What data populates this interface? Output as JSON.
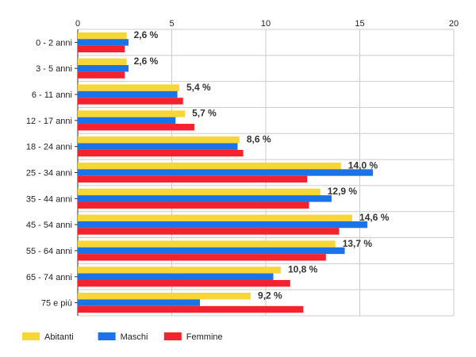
{
  "chart_data": {
    "type": "bar",
    "orientation": "horizontal",
    "title": "",
    "xlabel": "",
    "ylabel": "",
    "xlim": [
      0,
      20
    ],
    "x_ticks": [
      "0",
      "5",
      "10",
      "15",
      "20"
    ],
    "grid": true,
    "legend_position": "bottom-left",
    "categories": [
      "0 - 2 anni",
      "3 - 5 anni",
      "6 - 11 anni",
      "12 - 17 anni",
      "18 - 24 anni",
      "25 - 34 anni",
      "35 - 44 anni",
      "45 - 54 anni",
      "55 - 64 anni",
      "65 - 74 anni",
      "75 e più"
    ],
    "series": [
      {
        "name": "Abitanti",
        "color": "#f9d637",
        "values": [
          2.6,
          2.6,
          5.4,
          5.7,
          8.6,
          14.0,
          12.9,
          14.6,
          13.7,
          10.8,
          9.2
        ]
      },
      {
        "name": "Maschi",
        "color": "#1a74e8",
        "values": [
          2.7,
          2.7,
          5.3,
          5.2,
          8.5,
          15.7,
          13.5,
          15.4,
          14.2,
          10.4,
          6.5
        ]
      },
      {
        "name": "Femmine",
        "color": "#f5222d",
        "values": [
          2.5,
          2.5,
          5.6,
          6.2,
          8.8,
          12.2,
          12.3,
          13.9,
          13.2,
          11.3,
          12.0
        ]
      }
    ],
    "data_labels": [
      "2,6 %",
      "2,6 %",
      "5,4 %",
      "5,7 %",
      "8,6 %",
      "14,0 %",
      "12,9 %",
      "14,6 %",
      "13,7 %",
      "10,8 %",
      "9,2 %"
    ],
    "colors": {
      "grid": "#cccccc",
      "axis": "#333333"
    }
  }
}
